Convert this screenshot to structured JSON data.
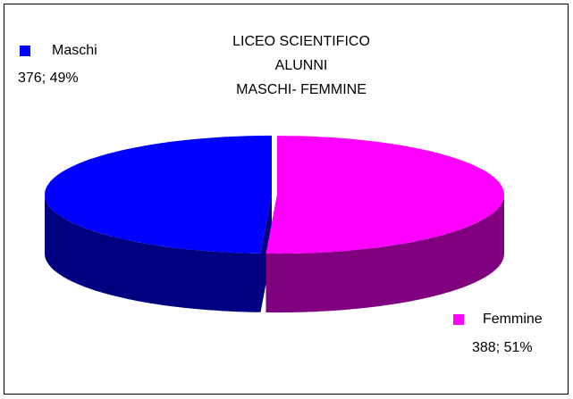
{
  "chart_data": {
    "type": "pie3d",
    "title": [
      "LICEO SCIENTIFICO",
      "ALUNNI",
      "MASCHI- FEMMINE"
    ],
    "categories": [
      "Maschi",
      "Femmine"
    ],
    "values": [
      376,
      388
    ],
    "value_labels": [
      "376; 49%",
      "388; 51%"
    ],
    "colors": [
      "#0000ff",
      "#ff00ff"
    ]
  }
}
